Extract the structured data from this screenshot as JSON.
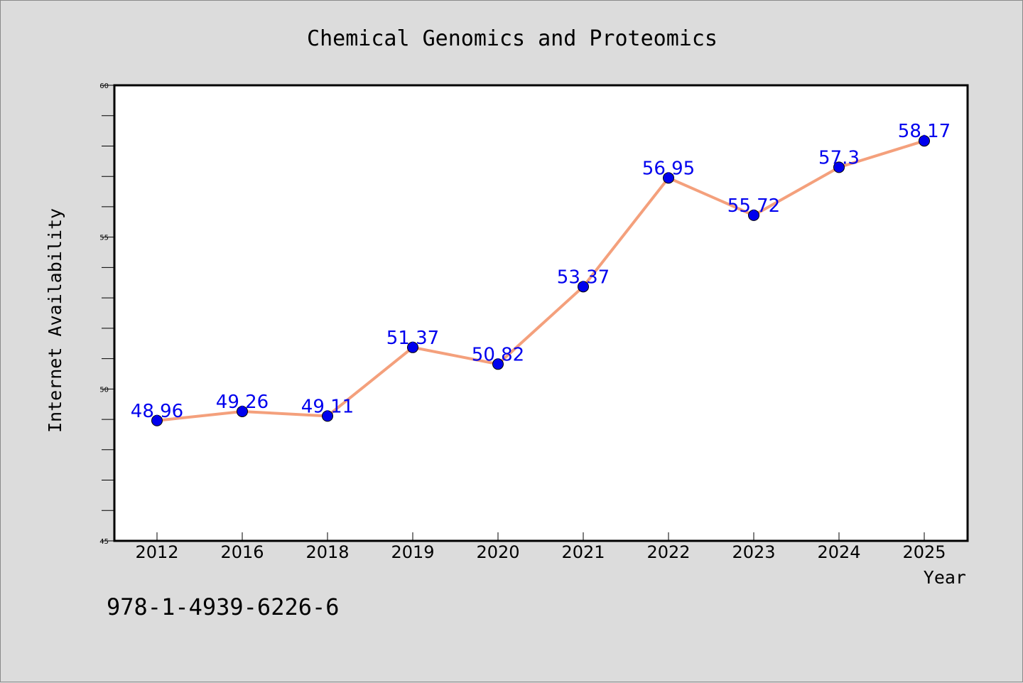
{
  "chart_data": {
    "type": "line",
    "title": "Chemical Genomics and Proteomics",
    "xlabel": "Year",
    "ylabel": "Internet Availability",
    "categories": [
      "2012",
      "2016",
      "2018",
      "2019",
      "2020",
      "2021",
      "2022",
      "2023",
      "2024",
      "2025"
    ],
    "series": [
      {
        "values": [
          48.96,
          49.26,
          49.11,
          51.37,
          50.82,
          53.37,
          56.95,
          55.72,
          57.3,
          58.17
        ],
        "labels": [
          "48.96",
          "49.26",
          "49.11",
          "51.37",
          "50.82",
          "53.37",
          "56.95",
          "55.72",
          "57.3",
          "58.17"
        ]
      }
    ],
    "ylim": [
      45,
      60
    ],
    "yticks": [
      "45",
      "50",
      "55",
      "60"
    ],
    "grid": false,
    "legend": "none",
    "colors": {
      "line": "#f4a07c",
      "marker": "#0000ee",
      "data_label": "#0000ee",
      "plot_background": "#ffffff",
      "page_background": "#dcdcdc"
    }
  },
  "footer": {
    "isbn": "978-1-4939-6226-6"
  }
}
